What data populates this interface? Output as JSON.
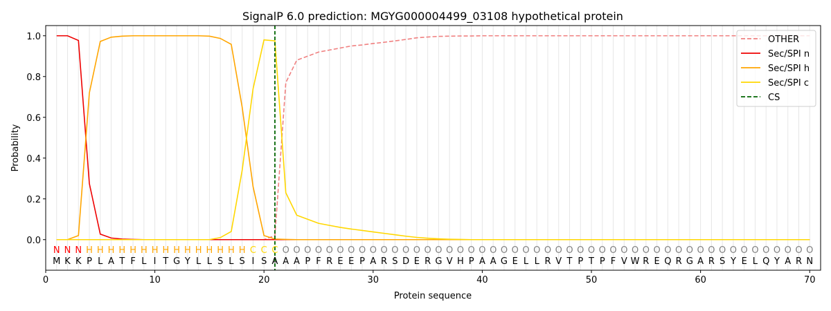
{
  "chart_data": {
    "type": "line",
    "title": "SignalP 6.0 prediction: MGYG000004499_03108 hypothetical protein",
    "xlabel": "Protein sequence",
    "ylabel": "Probability",
    "xlim": [
      0,
      71
    ],
    "ylim": [
      -0.15,
      1.05
    ],
    "xticks": [
      0,
      10,
      20,
      30,
      40,
      50,
      60,
      70
    ],
    "yticks": [
      0.0,
      0.2,
      0.4,
      0.6,
      0.8,
      1.0
    ],
    "xtick_labels": [
      "0",
      "10",
      "20",
      "30",
      "40",
      "50",
      "60",
      "70"
    ],
    "ytick_labels": [
      "0.0",
      "0.2",
      "0.4",
      "0.6",
      "0.8",
      "1.0"
    ],
    "grid": "vertical lines at each residue",
    "legend_position": "top-right",
    "sequence": [
      "M",
      "K",
      "K",
      "P",
      "L",
      "A",
      "T",
      "F",
      "L",
      "I",
      "T",
      "G",
      "Y",
      "L",
      "L",
      "S",
      "L",
      "S",
      "I",
      "S",
      "A",
      "A",
      "A",
      "P",
      "F",
      "R",
      "E",
      "E",
      "P",
      "A",
      "R",
      "S",
      "D",
      "E",
      "R",
      "G",
      "V",
      "H",
      "P",
      "A",
      "A",
      "G",
      "E",
      "L",
      "L",
      "R",
      "V",
      "T",
      "P",
      "T",
      "P",
      "F",
      "V",
      "W",
      "R",
      "E",
      "Q",
      "R",
      "G",
      "A",
      "R",
      "S",
      "Y",
      "E",
      "L",
      "Q",
      "Y",
      "A",
      "R",
      "N"
    ],
    "labels": [
      "N",
      "N",
      "N",
      "H",
      "H",
      "H",
      "H",
      "H",
      "H",
      "H",
      "H",
      "H",
      "H",
      "H",
      "H",
      "H",
      "H",
      "H",
      "C",
      "C",
      "C",
      "O",
      "O",
      "O",
      "O",
      "O",
      "O",
      "O",
      "O",
      "O",
      "O",
      "O",
      "O",
      "O",
      "O",
      "O",
      "O",
      "O",
      "O",
      "O",
      "O",
      "O",
      "O",
      "O",
      "O",
      "O",
      "O",
      "O",
      "O",
      "O",
      "O",
      "O",
      "O",
      "O",
      "O",
      "O",
      "O",
      "O",
      "O",
      "O",
      "O",
      "O",
      "O",
      "O",
      "O",
      "O",
      "O",
      "O",
      "O",
      "O"
    ],
    "label_colors": {
      "N": "#ff0000",
      "H": "#ffa500",
      "C": "#ffd700",
      "O": "#808080"
    },
    "x": [
      1,
      2,
      3,
      4,
      5,
      6,
      7,
      8,
      9,
      10,
      11,
      12,
      13,
      14,
      15,
      16,
      17,
      18,
      19,
      20,
      21,
      22,
      23,
      24,
      25,
      26,
      27,
      28,
      29,
      30,
      31,
      32,
      33,
      34,
      35,
      36,
      37,
      38,
      39,
      40,
      41,
      42,
      43,
      44,
      45,
      46,
      47,
      48,
      49,
      50,
      51,
      52,
      53,
      54,
      55,
      56,
      57,
      58,
      59,
      60,
      61,
      62,
      63,
      64,
      65,
      66,
      67,
      68,
      69,
      70
    ],
    "series": [
      {
        "name": "OTHER",
        "color": "#f08080",
        "dash": "dashed",
        "values": [
          0,
          0,
          0,
          0,
          0,
          0,
          0,
          0,
          0,
          0,
          0,
          0,
          0,
          0,
          0,
          0,
          0,
          0,
          0,
          0,
          0.02,
          0.77,
          0.88,
          0.9,
          0.92,
          0.93,
          0.94,
          0.95,
          0.955,
          0.962,
          0.968,
          0.975,
          0.982,
          0.99,
          0.994,
          0.997,
          0.998,
          0.999,
          0.999,
          1,
          1,
          1,
          1,
          1,
          1,
          1,
          1,
          1,
          1,
          1,
          1,
          1,
          1,
          1,
          1,
          1,
          1,
          1,
          1,
          1,
          1,
          1,
          1,
          1,
          1,
          1,
          1,
          1,
          1,
          1
        ]
      },
      {
        "name": "Sec/SPI n",
        "color": "#ee0000",
        "dash": "solid",
        "values": [
          1.0,
          1.0,
          0.977,
          0.275,
          0.027,
          0.008,
          0.003,
          0.001,
          0,
          0,
          0,
          0,
          0,
          0,
          0,
          0,
          0,
          0,
          0,
          0,
          0,
          0,
          0,
          0,
          0,
          0,
          0,
          0,
          0,
          0,
          0,
          0,
          0,
          0,
          0,
          0,
          0,
          0,
          0,
          0,
          0,
          0,
          0,
          0,
          0,
          0,
          0,
          0,
          0,
          0,
          0,
          0,
          0,
          0,
          0,
          0,
          0,
          0,
          0,
          0,
          0,
          0,
          0,
          0,
          0,
          0,
          0,
          0,
          0,
          0
        ]
      },
      {
        "name": "Sec/SPI h",
        "color": "#ffa500",
        "dash": "solid",
        "values": [
          0,
          0,
          0.02,
          0.72,
          0.972,
          0.993,
          0.998,
          1.0,
          1.0,
          1.0,
          1.0,
          1.0,
          1.0,
          1.0,
          0.998,
          0.987,
          0.958,
          0.65,
          0.26,
          0.02,
          0.003,
          0.001,
          0,
          0,
          0,
          0,
          0,
          0,
          0,
          0,
          0,
          0,
          0,
          0,
          0,
          0,
          0,
          0,
          0,
          0,
          0,
          0,
          0,
          0,
          0,
          0,
          0,
          0,
          0,
          0,
          0,
          0,
          0,
          0,
          0,
          0,
          0,
          0,
          0,
          0,
          0,
          0,
          0,
          0,
          0,
          0,
          0,
          0,
          0,
          0
        ]
      },
      {
        "name": "Sec/SPI c",
        "color": "#ffd700",
        "dash": "solid",
        "values": [
          0,
          0,
          0,
          0,
          0,
          0,
          0,
          0,
          0,
          0,
          0,
          0,
          0,
          0,
          0,
          0.01,
          0.04,
          0.34,
          0.74,
          0.98,
          0.975,
          0.23,
          0.12,
          0.1,
          0.08,
          0.07,
          0.06,
          0.052,
          0.045,
          0.038,
          0.031,
          0.024,
          0.017,
          0.011,
          0.007,
          0.004,
          0.002,
          0.001,
          0,
          0,
          0,
          0,
          0,
          0,
          0,
          0,
          0,
          0,
          0,
          0,
          0,
          0,
          0,
          0,
          0,
          0,
          0,
          0,
          0,
          0,
          0,
          0,
          0,
          0,
          0,
          0,
          0,
          0,
          0,
          0
        ]
      }
    ],
    "cs": {
      "name": "CS",
      "x": 21,
      "color": "#006400",
      "dash": "dashed"
    }
  }
}
